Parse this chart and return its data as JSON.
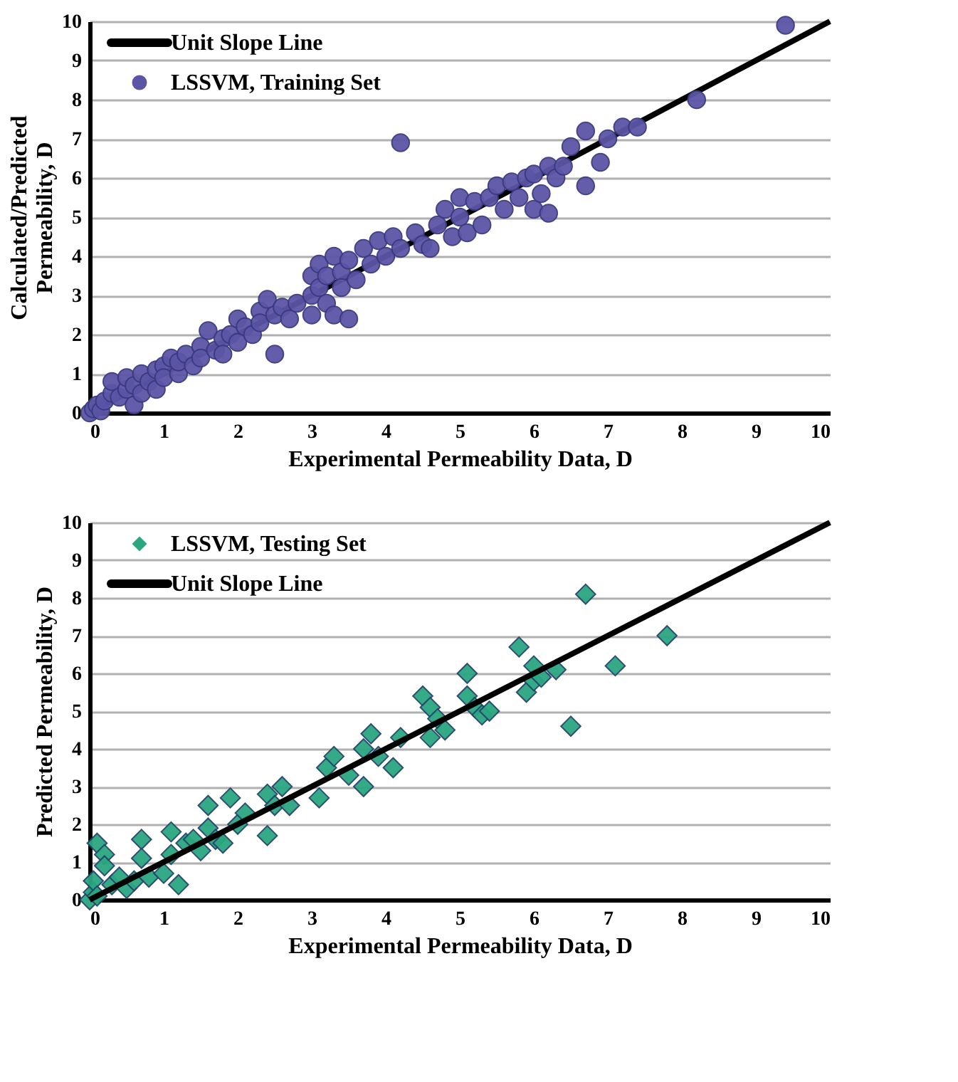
{
  "chart_data": [
    {
      "type": "scatter",
      "xlabel": "Experimental Permeability Data, D",
      "ylabel": "Calculated/Predicted Permeability, D",
      "xlim": [
        0,
        10
      ],
      "ylim": [
        0,
        10
      ],
      "xticks": [
        0,
        1,
        2,
        3,
        4,
        5,
        6,
        7,
        8,
        9,
        10
      ],
      "yticks": [
        0,
        1,
        2,
        3,
        4,
        5,
        6,
        7,
        8,
        9,
        10
      ],
      "grid": "y",
      "legend": "top left",
      "series": [
        {
          "name": "Unit Slope Line",
          "type": "line",
          "color": "#000000",
          "marker": "none",
          "x": [
            0,
            10
          ],
          "values": [
            0,
            10
          ]
        },
        {
          "name": "LSSVM, Training Set",
          "type": "scatter",
          "color": "#5b55a6",
          "marker": "circle",
          "x": [
            0,
            0.05,
            0.1,
            0.15,
            0.2,
            0.3,
            0.3,
            0.4,
            0.5,
            0.5,
            0.6,
            0.6,
            0.7,
            0.7,
            0.8,
            0.9,
            0.9,
            1.0,
            1.0,
            1.1,
            1.2,
            1.2,
            1.3,
            1.4,
            1.5,
            1.5,
            1.6,
            1.7,
            1.8,
            1.8,
            1.9,
            2.0,
            2.0,
            2.1,
            2.2,
            2.3,
            2.3,
            2.4,
            2.5,
            2.5,
            2.6,
            2.7,
            2.8,
            3.0,
            3.0,
            3.0,
            3.1,
            3.1,
            3.2,
            3.2,
            3.3,
            3.3,
            3.4,
            3.4,
            3.5,
            3.5,
            3.6,
            3.7,
            3.8,
            3.9,
            4.0,
            4.1,
            4.2,
            4.2,
            4.4,
            4.5,
            4.6,
            4.7,
            4.8,
            4.9,
            5.0,
            5.0,
            5.1,
            5.2,
            5.3,
            5.4,
            5.5,
            5.6,
            5.7,
            5.8,
            5.9,
            6.0,
            6.0,
            6.1,
            6.2,
            6.2,
            6.3,
            6.4,
            6.5,
            6.7,
            6.7,
            6.9,
            7.0,
            7.2,
            7.4,
            8.2,
            9.4
          ],
          "values": [
            0,
            0.1,
            0.2,
            0.05,
            0.3,
            0.5,
            0.8,
            0.4,
            0.6,
            0.9,
            0.7,
            0.2,
            1.0,
            0.5,
            0.8,
            1.1,
            0.6,
            1.2,
            0.9,
            1.4,
            1.0,
            1.3,
            1.5,
            1.2,
            1.7,
            1.4,
            2.1,
            1.6,
            1.9,
            1.5,
            2.0,
            2.4,
            1.8,
            2.2,
            2.0,
            2.6,
            2.3,
            2.9,
            2.5,
            1.5,
            2.7,
            2.4,
            2.8,
            3.0,
            3.5,
            2.5,
            3.2,
            3.8,
            2.8,
            3.5,
            4.0,
            2.5,
            3.6,
            3.2,
            3.9,
            2.4,
            3.4,
            4.2,
            3.8,
            4.4,
            4.0,
            4.5,
            6.9,
            4.2,
            4.6,
            4.3,
            4.2,
            4.8,
            5.2,
            4.5,
            5.0,
            5.5,
            4.6,
            5.4,
            4.8,
            5.5,
            5.8,
            5.2,
            5.9,
            5.5,
            6.0,
            6.1,
            5.2,
            5.6,
            5.1,
            6.3,
            6.0,
            6.3,
            6.8,
            7.2,
            5.8,
            6.4,
            7.0,
            7.3,
            7.3,
            8.0,
            9.9
          ]
        }
      ]
    },
    {
      "type": "scatter",
      "xlabel": "Experimental Permeability Data, D",
      "ylabel": "Predicted Permeability, D",
      "xlim": [
        0,
        10
      ],
      "ylim": [
        0,
        10
      ],
      "xticks": [
        0,
        1,
        2,
        3,
        4,
        5,
        6,
        7,
        8,
        9,
        10
      ],
      "yticks": [
        0,
        1,
        2,
        3,
        4,
        5,
        6,
        7,
        8,
        9,
        10
      ],
      "grid": "y",
      "legend": "top left",
      "series": [
        {
          "name": "LSSVM, Testing Set",
          "type": "scatter",
          "color": "#2aa680",
          "marker": "diamond",
          "x": [
            0,
            0.05,
            0.05,
            0.1,
            0.1,
            0.2,
            0.2,
            0.3,
            0.4,
            0.5,
            0.6,
            0.7,
            0.7,
            0.8,
            1.0,
            1.1,
            1.1,
            1.2,
            1.3,
            1.4,
            1.5,
            1.6,
            1.6,
            1.7,
            1.8,
            1.9,
            2.0,
            2.1,
            2.4,
            2.4,
            2.5,
            2.6,
            2.7,
            3.1,
            3.2,
            3.3,
            3.5,
            3.7,
            3.7,
            3.8,
            3.9,
            4.1,
            4.2,
            4.5,
            4.6,
            4.6,
            4.7,
            4.8,
            5.1,
            5.1,
            5.2,
            5.3,
            5.4,
            5.8,
            5.9,
            6.0,
            6.0,
            6.1,
            6.3,
            6.5,
            6.7,
            7.1,
            7.8
          ],
          "values": [
            0,
            0.2,
            0.5,
            1.5,
            0.1,
            1.2,
            0.9,
            0.4,
            0.6,
            0.3,
            0.5,
            1.6,
            1.1,
            0.6,
            0.7,
            1.8,
            1.2,
            0.4,
            1.5,
            1.6,
            1.3,
            2.5,
            1.9,
            1.6,
            1.5,
            2.7,
            2.0,
            2.3,
            1.7,
            2.8,
            2.5,
            3.0,
            2.5,
            2.7,
            3.5,
            3.8,
            3.3,
            4.0,
            3.0,
            4.4,
            3.8,
            3.5,
            4.3,
            5.4,
            5.1,
            4.3,
            4.8,
            4.5,
            6.0,
            5.4,
            5.1,
            4.9,
            5.0,
            6.7,
            5.5,
            5.8,
            6.2,
            5.9,
            6.1,
            4.6,
            8.1,
            6.2,
            7.0
          ]
        },
        {
          "name": "Unit Slope Line",
          "type": "line",
          "color": "#000000",
          "marker": "none",
          "x": [
            0,
            10
          ],
          "values": [
            0,
            10
          ]
        }
      ]
    }
  ]
}
